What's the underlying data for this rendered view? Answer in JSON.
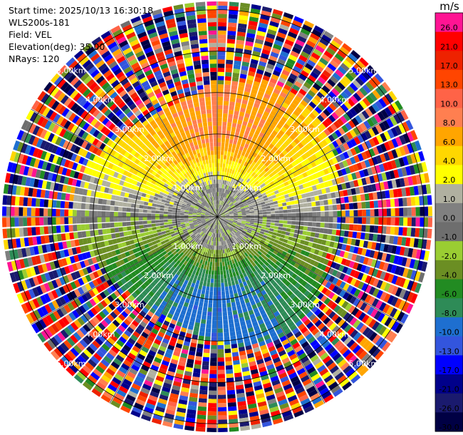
{
  "header": {
    "start_time": "Start time: 2025/10/13 16:30:18",
    "instrument": "WLS200s-181",
    "field": "Field: VEL",
    "elevation": "Elevation(deg): 35.00",
    "nrays": "NRays: 120"
  },
  "chart_data": {
    "type": "heatmap",
    "projection": "polar PPI",
    "field": "VEL",
    "units": "m/s",
    "elevation_deg": 35.0,
    "n_rays": 120,
    "max_range_km": 5.2,
    "range_ring_labels": [
      "1.00km",
      "2.00km",
      "3.00km",
      "4.00km",
      "5.00km"
    ],
    "range_rings_km": [
      1,
      2,
      3,
      4,
      5
    ],
    "colorbar": {
      "title": "m/s",
      "tick_labels": [
        "26.0",
        "21.0",
        "17.0",
        "13.0",
        "10.0",
        "8.0",
        "6.0",
        "4.0",
        "2.0",
        "1.0",
        "0.0",
        "-1.0",
        "-2.0",
        "-4.0",
        "-6.0",
        "-8.0",
        "-10.0",
        "-13.0",
        "-17.0",
        "-21.0",
        "-26.0",
        "-30.0"
      ],
      "colors": [
        "#ff1493",
        "#ff0000",
        "#ee2200",
        "#ff4500",
        "#ff6347",
        "#ff7f50",
        "#ffa500",
        "#ffd700",
        "#ffff00",
        "#b0b0a0",
        "#808080",
        "#6e6e6e",
        "#9acd32",
        "#6b8e23",
        "#228b22",
        "#2e8b57",
        "#1e6fd0",
        "#3355dd",
        "#0000ff",
        "#00008b",
        "#1a1a6e",
        "#000044"
      ]
    },
    "velocity_structure": {
      "north_sector_ms": 8,
      "south_sector_ms": -9,
      "near_range_ms": 0,
      "noise_beyond_km": 3.0
    }
  }
}
